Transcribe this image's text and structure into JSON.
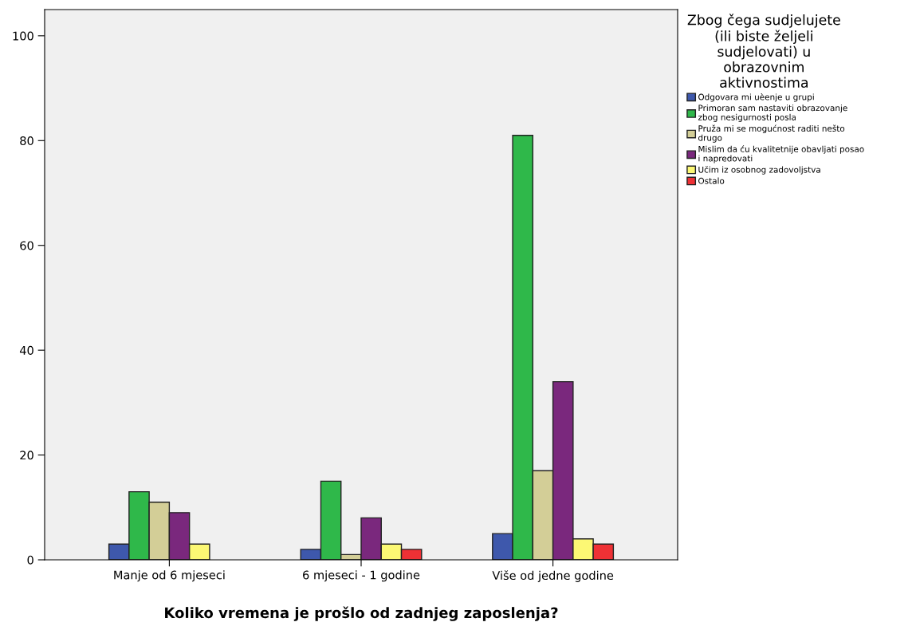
{
  "chart_data": {
    "type": "bar",
    "xlabel": "Koliko vremena je prošlo od zadnjeg zaposlenja?",
    "legend_title": "Zbog čega sudjelujete\n(ili biste željeli\nsudjelovati) u\nobrazovnim\naktivnostima",
    "categories": [
      "Manje od 6 mjeseci",
      "6 mjeseci - 1 godine",
      "Više od jedne godine"
    ],
    "series": [
      {
        "name": "Odgovara mi uèenje u grupi",
        "color": "#3e58ac",
        "values": [
          3,
          2,
          5
        ]
      },
      {
        "name": "Primoran sam nastaviti obrazovanje\nzbog nesigurnosti posla",
        "color": "#2fb84a",
        "values": [
          13,
          15,
          81
        ]
      },
      {
        "name": "Pruža mi se mogućnost raditi nešto\ndrugo",
        "color": "#d3ce97",
        "values": [
          11,
          1,
          17
        ]
      },
      {
        "name": "Mislim da ću kvalitetnije obavljati posao\ni napredovati",
        "color": "#7a287d",
        "values": [
          9,
          8,
          34
        ]
      },
      {
        "name": "Učim iz osobnog zadovoljstva",
        "color": "#fcf874",
        "values": [
          3,
          3,
          4
        ]
      },
      {
        "name": "Ostalo",
        "color": "#ee3135",
        "values": [
          null,
          2,
          3
        ]
      }
    ],
    "ylim": [
      0,
      105
    ],
    "yticks": [
      0,
      20,
      40,
      60,
      80,
      100
    ],
    "grid": false,
    "legend": "right"
  }
}
